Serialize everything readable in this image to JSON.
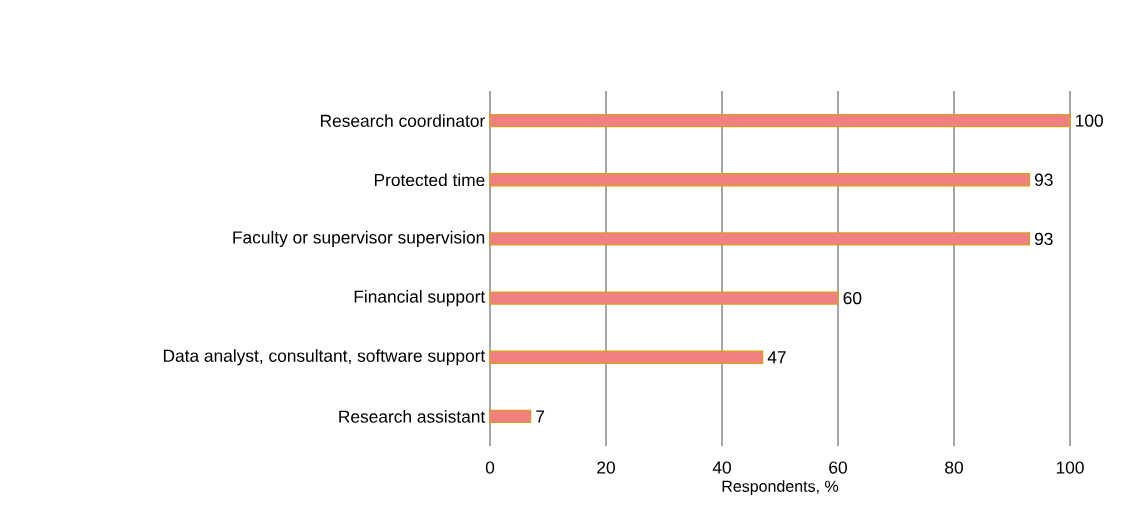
{
  "chart_data": {
    "type": "bar",
    "orientation": "horizontal",
    "xlabel": "Respondents, %",
    "categories": [
      "Research coordinator",
      "Protected time",
      "Faculty or supervisor supervision",
      "Financial support",
      "Data analyst, consultant, software support",
      "Research assistant"
    ],
    "values": [
      100,
      93,
      93,
      60,
      47,
      7
    ],
    "color": "#f08080",
    "xlim": [
      0,
      100
    ],
    "xticks": [
      0,
      20,
      40,
      60,
      80,
      100
    ],
    "grid": "x",
    "data_labels": true
  }
}
